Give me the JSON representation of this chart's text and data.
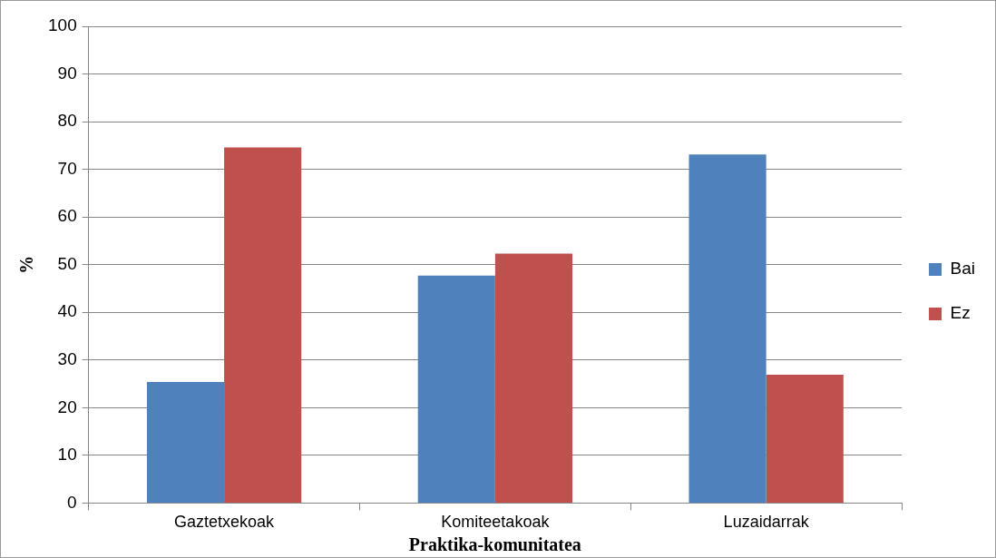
{
  "chart_data": {
    "type": "bar",
    "xlabel": "Praktika-komunitatea",
    "ylabel": "%",
    "categories": [
      "Gaztetxekoak",
      "Komiteetakoak",
      "Luzaidarrak"
    ],
    "series": [
      {
        "name": "Bai",
        "color": "#4f81bd",
        "values": [
          25.4,
          47.7,
          73.1
        ]
      },
      {
        "name": "Ez",
        "color": "#c0504d",
        "values": [
          74.6,
          52.3,
          26.9
        ]
      }
    ],
    "ylim": [
      0,
      100
    ],
    "yticks": [
      0,
      10,
      20,
      30,
      40,
      50,
      60,
      70,
      80,
      90,
      100
    ],
    "grid": "y",
    "legend": "right"
  }
}
